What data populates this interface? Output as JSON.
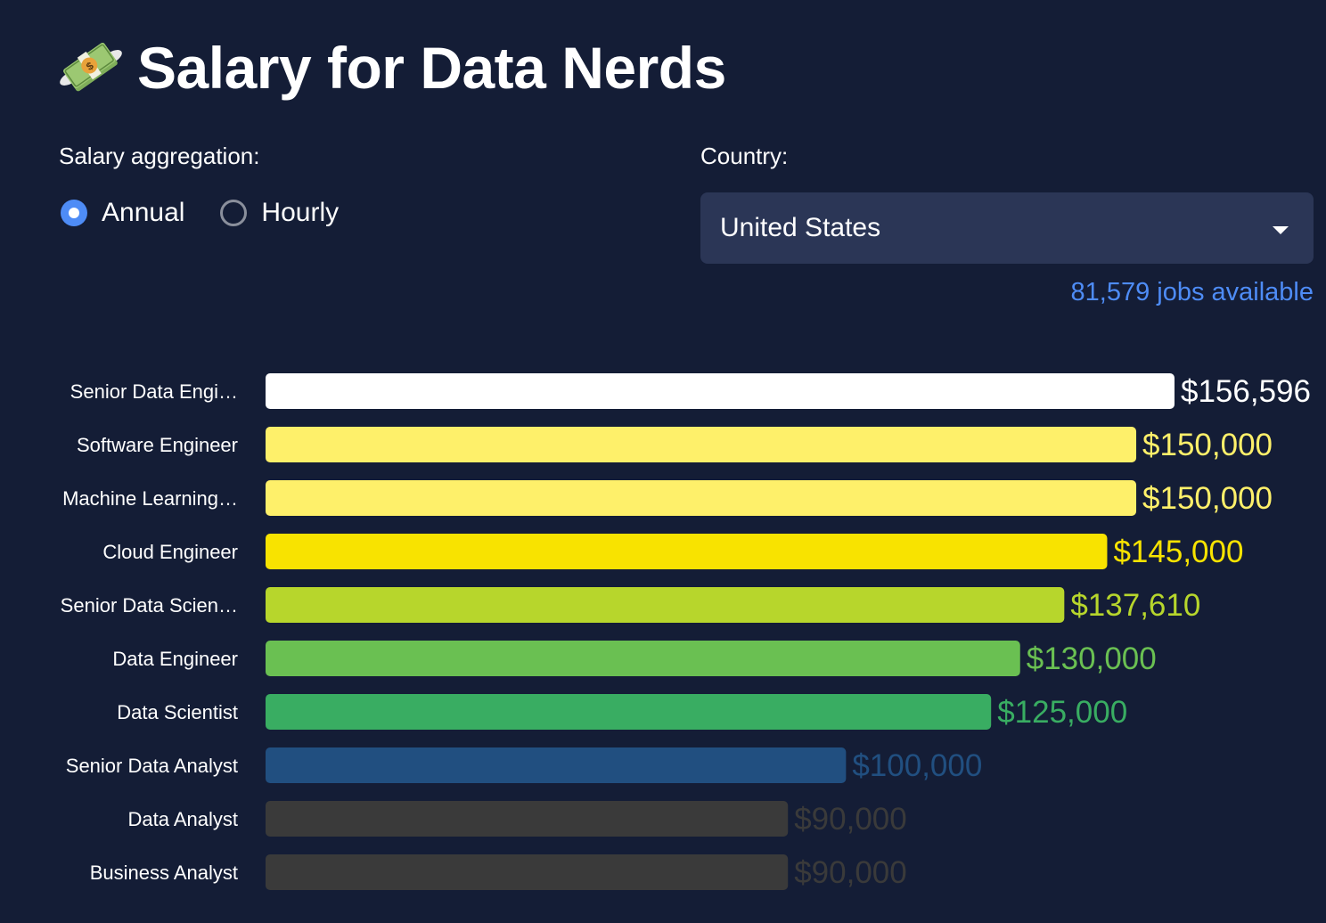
{
  "page": {
    "title": "Salary for Data Nerds",
    "title_icon": "money-with-wings-icon"
  },
  "controls": {
    "aggregation_label": "Salary aggregation:",
    "aggregation_options": [
      {
        "label": "Annual",
        "selected": true
      },
      {
        "label": "Hourly",
        "selected": false
      }
    ],
    "country_label": "Country:",
    "country_value": "United States",
    "jobs_available": "81,579 jobs available"
  },
  "colors": {
    "background": "#141d36",
    "accent": "#4e8cf6",
    "select_bg": "#2b3656"
  },
  "chart_data": {
    "type": "bar",
    "orientation": "horizontal",
    "title": "",
    "xlabel": "",
    "ylabel": "",
    "xlim": [
      0,
      156596
    ],
    "grid": false,
    "categories": [
      "Senior Data Engi…",
      "Software Engineer",
      "Machine Learning…",
      "Cloud Engineer",
      "Senior Data Scien…",
      "Data Engineer",
      "Data Scientist",
      "Senior Data Analyst",
      "Data Analyst",
      "Business Analyst"
    ],
    "values": [
      156596,
      150000,
      150000,
      145000,
      137610,
      130000,
      125000,
      100000,
      90000,
      90000
    ],
    "value_labels": [
      "$156,596",
      "$150,000",
      "$150,000",
      "$145,000",
      "$137,610",
      "$130,000",
      "$125,000",
      "$100,000",
      "$90,000",
      "$90,000"
    ],
    "colors": [
      "#ffffff",
      "#fef06a",
      "#fef06a",
      "#f8e300",
      "#b7d62c",
      "#6ac052",
      "#39ad62",
      "#214f80",
      "#3a3a3a",
      "#3a3a3a"
    ]
  }
}
